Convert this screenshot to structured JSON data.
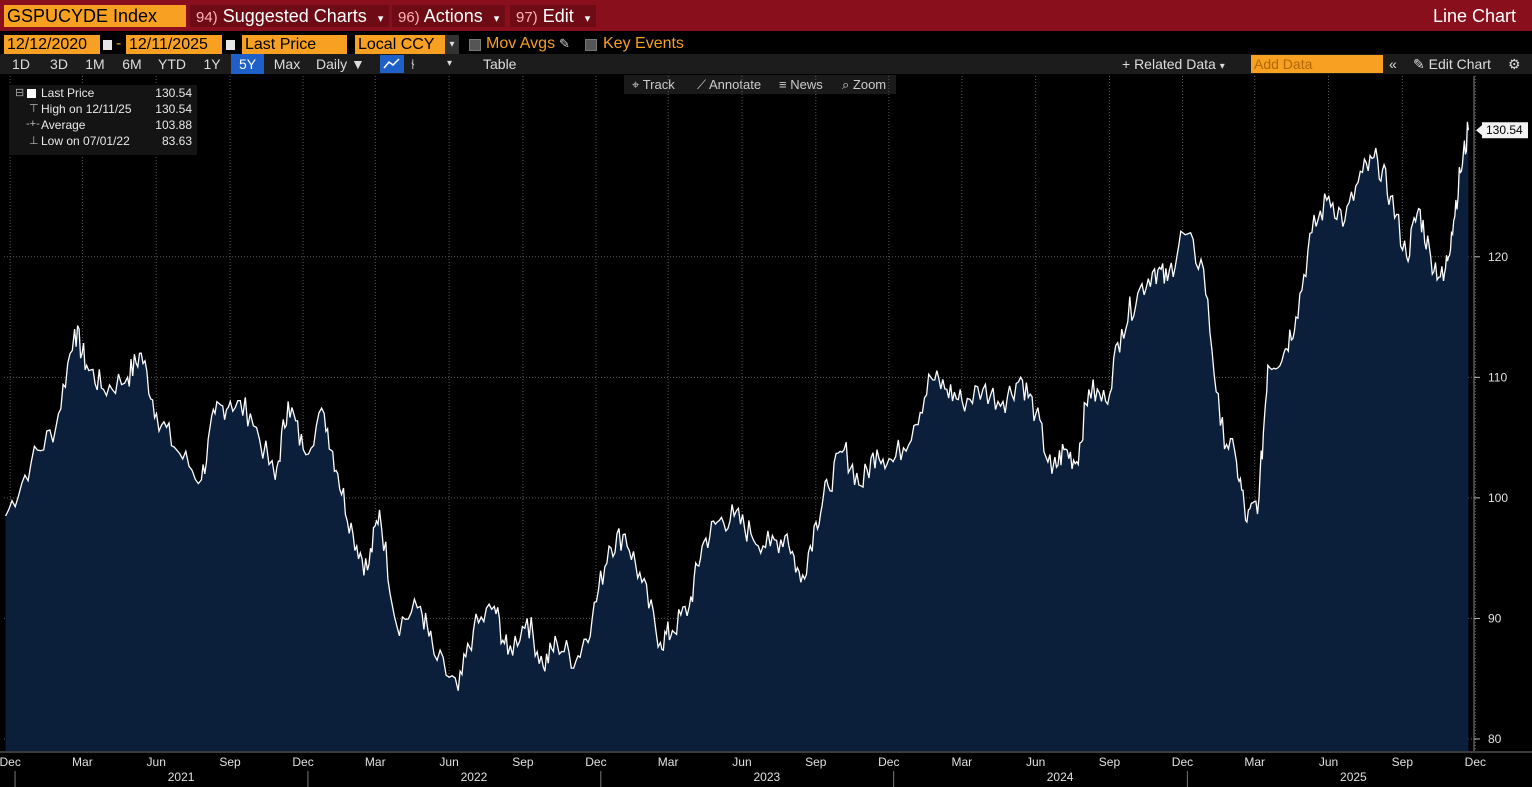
{
  "header": {
    "ticker": "GSPUCYDE Index",
    "menus": [
      {
        "num": "94)",
        "label": "Suggested Charts"
      },
      {
        "num": "96)",
        "label": "Actions"
      },
      {
        "num": "97)",
        "label": "Edit"
      }
    ],
    "chart_title": "Line Chart"
  },
  "controls": {
    "start_date": "12/12/2020",
    "end_date": "12/11/2025",
    "date_sep": "-",
    "field": "Last Price",
    "currency": "Local CCY",
    "mov_avgs": "Mov Avgs",
    "key_events": "Key Events"
  },
  "periods": [
    "1D",
    "3D",
    "1M",
    "6M",
    "YTD",
    "1Y",
    "5Y",
    "Max"
  ],
  "active_period": "5Y",
  "toolbar": {
    "frequency": "Daily",
    "table": "Table",
    "related_data": "+ Related Data",
    "add_data_placeholder": "Add Data",
    "edit_chart": "Edit Chart"
  },
  "chart_toolbar": {
    "track": "Track",
    "annotate": "Annotate",
    "news": "News",
    "zoom": "Zoom"
  },
  "legend": [
    {
      "label": "Last Price",
      "value": "130.54"
    },
    {
      "label": "High on 12/11/25",
      "value": "130.54"
    },
    {
      "label": "Average",
      "value": "103.88"
    },
    {
      "label": "Low on 07/01/22",
      "value": "83.63"
    }
  ],
  "colors": {
    "line": "#ffffff",
    "area": "#0b1f3a",
    "accent": "#f7a021",
    "header_red": "#8a0f1c"
  },
  "chart_data": {
    "type": "area",
    "title": "",
    "xlabel": "",
    "ylabel": "",
    "ylim": [
      79,
      135
    ],
    "y_ticks": [
      80,
      90,
      100,
      110,
      120
    ],
    "last_value_tag": "130.54",
    "grid": true,
    "x_month_labels": [
      "Dec",
      "Mar",
      "Jun",
      "Sep",
      "Dec",
      "Mar",
      "Jun",
      "Sep",
      "Dec",
      "Mar",
      "Jun",
      "Sep",
      "Dec",
      "Mar",
      "Jun",
      "Sep",
      "Dec",
      "Mar",
      "Jun",
      "Sep",
      "Dec"
    ],
    "x_year_labels": [
      "2021",
      "2022",
      "2023",
      "2024",
      "2025"
    ],
    "series": [
      {
        "name": "Last Price",
        "x": [
          "2020-12-14",
          "2021-01-15",
          "2021-02-15",
          "2021-03-10",
          "2021-03-25",
          "2021-04-15",
          "2021-05-15",
          "2021-06-01",
          "2021-06-20",
          "2021-07-15",
          "2021-08-15",
          "2021-09-01",
          "2021-09-20",
          "2021-10-15",
          "2021-11-15",
          "2021-12-01",
          "2021-12-20",
          "2022-01-15",
          "2022-02-01",
          "2022-02-20",
          "2022-03-10",
          "2022-03-25",
          "2022-04-15",
          "2022-05-15",
          "2022-06-01",
          "2022-07-01",
          "2022-07-20",
          "2022-08-15",
          "2022-09-01",
          "2022-09-25",
          "2022-10-15",
          "2022-11-01",
          "2022-11-25",
          "2022-12-15",
          "2023-01-05",
          "2023-01-25",
          "2023-02-15",
          "2023-03-10",
          "2023-03-25",
          "2023-04-15",
          "2023-05-01",
          "2023-05-20",
          "2023-06-10",
          "2023-07-01",
          "2023-07-25",
          "2023-08-15",
          "2023-09-01",
          "2023-09-20",
          "2023-10-05",
          "2023-10-25",
          "2023-11-15",
          "2023-12-05",
          "2023-12-25",
          "2024-01-20",
          "2024-02-10",
          "2024-03-01",
          "2024-03-20",
          "2024-04-15",
          "2024-05-10",
          "2024-06-01",
          "2024-06-20",
          "2024-07-10",
          "2024-07-25",
          "2024-08-10",
          "2024-08-25",
          "2024-09-15",
          "2024-10-05",
          "2024-10-25",
          "2024-11-15",
          "2024-12-01",
          "2024-12-20",
          "2025-01-15",
          "2025-02-05",
          "2025-02-25",
          "2025-03-10",
          "2025-03-25",
          "2025-04-05",
          "2025-04-25",
          "2025-05-10",
          "2025-05-30",
          "2025-06-20",
          "2025-07-10",
          "2025-08-01",
          "2025-08-20",
          "2025-09-05",
          "2025-09-25",
          "2025-10-10",
          "2025-10-25",
          "2025-11-10",
          "2025-11-20",
          "2025-12-01",
          "2025-12-11"
        ],
        "y": [
          98.5,
          103,
          106,
          114,
          111,
          109,
          110,
          112,
          107,
          104,
          101.5,
          107,
          108,
          107,
          101.5,
          108,
          104,
          107,
          102,
          97,
          94,
          99,
          89.5,
          91,
          87,
          84,
          89,
          91,
          87,
          90,
          86,
          88,
          86.5,
          90,
          96,
          97,
          93,
          88,
          89,
          91,
          96,
          98,
          98.5,
          97,
          96,
          97,
          93,
          98,
          101,
          104,
          101,
          104,
          103,
          106,
          110,
          109,
          108,
          109,
          108,
          110,
          107,
          102,
          104,
          103,
          109,
          108,
          114,
          117,
          119,
          118,
          122,
          119,
          106,
          103,
          98,
          100,
          111,
          112,
          115,
          122,
          125,
          123,
          127,
          128,
          125,
          120,
          124,
          120,
          118,
          122,
          127,
          130.5
        ]
      }
    ]
  }
}
